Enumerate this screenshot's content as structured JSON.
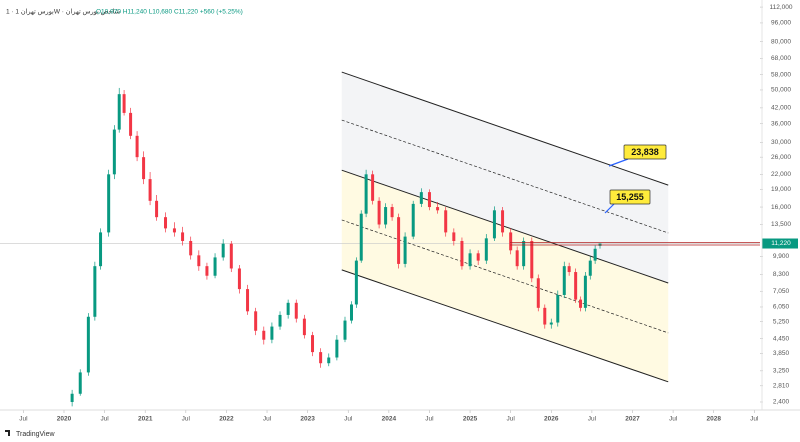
{
  "chart_data": {
    "type": "candlestick",
    "title": "بورس تهران 1 · 1W · شاخص بورس تهران",
    "legend_text": "O10,970 H11,240 L10,680 C11,220 +560 (+5.25%)",
    "logo": "TradingView",
    "log_scale": true,
    "up_color": "#089981",
    "down_color": "#f23645",
    "xlim": [
      2019.212,
      2028.57
    ],
    "ylim": [
      2220,
      120000
    ],
    "xticks": [
      {
        "value": 2019.5,
        "label": "Jul"
      },
      2020,
      {
        "value": 2020.5,
        "label": "Jul"
      },
      2021,
      {
        "value": 2021.5,
        "label": "Jul"
      },
      2022,
      {
        "value": 2022.5,
        "label": "Jul"
      },
      2023,
      {
        "value": 2023.5,
        "label": "Jul"
      },
      2024,
      {
        "value": 2024.5,
        "label": "Jul"
      },
      2025,
      {
        "value": 2025.5,
        "label": "Jul"
      },
      2026,
      {
        "value": 2026.5,
        "label": "Jul"
      },
      2027,
      {
        "value": 2027.5,
        "label": "Jul"
      },
      2028,
      {
        "value": 2028.5,
        "label": "Jul"
      }
    ],
    "yticks": [
      {
        "value": 112000,
        "label": "112,000"
      },
      {
        "value": 96000,
        "label": "96,000"
      },
      {
        "value": 80000,
        "label": "80,000"
      },
      {
        "value": 68000,
        "label": "68,000"
      },
      {
        "value": 58000,
        "label": "58,000"
      },
      {
        "value": 50000,
        "label": "50,000"
      },
      {
        "value": 42000,
        "label": "42,000"
      },
      {
        "value": 36000,
        "label": "36,000"
      },
      {
        "value": 30000,
        "label": "30,000"
      },
      {
        "value": 26000,
        "label": "26,000"
      },
      {
        "value": 22000,
        "label": "22,000"
      },
      {
        "value": 19000,
        "label": "19,000"
      },
      {
        "value": 16000,
        "label": "16,000"
      },
      {
        "value": 13500,
        "label": "13,500"
      },
      {
        "value": 9900,
        "label": "9,900"
      },
      {
        "value": 8300,
        "label": "8,300"
      },
      {
        "value": 7050,
        "label": "7,050"
      },
      {
        "value": 6050,
        "label": "6,050"
      },
      {
        "value": 5250,
        "label": "5,250"
      },
      {
        "value": 4450,
        "label": "4,450"
      },
      {
        "value": 3850,
        "label": "3,850"
      },
      {
        "value": 3250,
        "label": "3,250"
      },
      {
        "value": 2810,
        "label": "2,810"
      },
      {
        "value": 2400,
        "label": "2,400"
      }
    ],
    "x": [
      2020.1,
      2020.2,
      2020.3,
      2020.38,
      2020.45,
      2020.55,
      2020.62,
      2020.68,
      2020.74,
      2020.82,
      2020.9,
      2020.98,
      2021.06,
      2021.14,
      2021.25,
      2021.36,
      2021.46,
      2021.56,
      2021.66,
      2021.76,
      2021.86,
      2021.96,
      2022.06,
      2022.16,
      2022.26,
      2022.36,
      2022.46,
      2022.56,
      2022.66,
      2022.76,
      2022.86,
      2022.96,
      2023.06,
      2023.16,
      2023.26,
      2023.36,
      2023.46,
      2023.54,
      2023.6,
      2023.66,
      2023.72,
      2023.8,
      2023.88,
      2023.96,
      2024.04,
      2024.12,
      2024.2,
      2024.3,
      2024.4,
      2024.5,
      2024.6,
      2024.7,
      2024.8,
      2024.9,
      2025.0,
      2025.1,
      2025.2,
      2025.3,
      2025.4,
      2025.5,
      2025.58,
      2025.66,
      2025.76,
      2025.84,
      2025.92,
      2026.0,
      2026.08,
      2026.16,
      2026.22,
      2026.3,
      2026.36,
      2026.42,
      2026.48,
      2026.54,
      2026.6
    ],
    "open": [
      2400,
      2600,
      3200,
      5500,
      9000,
      12500,
      22000,
      34000,
      48000,
      40000,
      32000,
      26000,
      21000,
      17000,
      14500,
      13000,
      12500,
      11500,
      10000,
      9000,
      8200,
      9800,
      11200,
      8800,
      7200,
      5800,
      4800,
      4400,
      5000,
      5600,
      6300,
      5400,
      4600,
      3900,
      3500,
      3700,
      4400,
      5300,
      6200,
      9500,
      15000,
      22000,
      17000,
      13500,
      16000,
      14500,
      9200,
      12000,
      16500,
      18500,
      16000,
      15500,
      12500,
      11500,
      9000,
      10200,
      9500,
      11800,
      15500,
      12500,
      10500,
      9000,
      11500,
      8000,
      6000,
      5100,
      5200,
      6800,
      9000,
      8500,
      6500,
      6000,
      8200,
      9500,
      10970
    ],
    "high": [
      2700,
      3300,
      5700,
      9400,
      13000,
      23000,
      35500,
      51000,
      50000,
      42000,
      33500,
      27500,
      22500,
      18000,
      15200,
      13800,
      13200,
      12000,
      10500,
      9300,
      10200,
      11700,
      11500,
      9100,
      7500,
      6000,
      5000,
      5200,
      5800,
      6500,
      6500,
      5600,
      4750,
      4050,
      3850,
      4600,
      5500,
      6400,
      9800,
      15500,
      23000,
      22800,
      17600,
      16600,
      16500,
      15000,
      12500,
      17000,
      19200,
      19000,
      16800,
      16000,
      13000,
      11900,
      10600,
      10500,
      12300,
      16100,
      16000,
      13000,
      10900,
      11900,
      11900,
      8300,
      6200,
      5400,
      7100,
      9400,
      9300,
      8800,
      6700,
      8500,
      9900,
      11000,
      11240
    ],
    "low": [
      2300,
      2550,
      3100,
      5300,
      8700,
      12000,
      21000,
      33000,
      39000,
      31000,
      25000,
      20000,
      16300,
      14000,
      12500,
      12000,
      11000,
      9600,
      8600,
      7900,
      8000,
      9500,
      8500,
      6900,
      5600,
      4600,
      4200,
      4250,
      4850,
      5400,
      5200,
      4450,
      3750,
      3350,
      3400,
      3600,
      4300,
      5150,
      6000,
      9300,
      14500,
      16400,
      13000,
      13000,
      14000,
      8800,
      8900,
      11700,
      16000,
      15500,
      15000,
      12000,
      11000,
      8700,
      8700,
      9100,
      9200,
      11500,
      12000,
      10100,
      8700,
      8700,
      7700,
      5800,
      4900,
      4900,
      5000,
      6600,
      8200,
      6300,
      5800,
      5800,
      7900,
      9200,
      10680
    ],
    "close": [
      2600,
      3200,
      5500,
      9000,
      12500,
      22000,
      34000,
      48000,
      40000,
      32000,
      26000,
      21000,
      17000,
      14500,
      13000,
      12500,
      11500,
      10000,
      9000,
      8200,
      9800,
      11200,
      8800,
      7200,
      5800,
      4800,
      4400,
      5000,
      5600,
      6300,
      5400,
      4600,
      3900,
      3500,
      3700,
      4400,
      5300,
      6200,
      9500,
      15000,
      22000,
      17000,
      13500,
      16000,
      14500,
      9200,
      12000,
      16500,
      18500,
      16000,
      15500,
      12500,
      11500,
      9000,
      10200,
      9500,
      11800,
      15500,
      12500,
      10500,
      9000,
      11500,
      8000,
      6000,
      5100,
      5200,
      6800,
      9000,
      8500,
      6500,
      6000,
      8200,
      9500,
      10660,
      11220
    ],
    "price_line": {
      "value": 11220,
      "label": "11,220"
    },
    "channel_lines": [
      {
        "style": "solid",
        "points": [
          [
            2023.42,
            59500
          ],
          [
            2027.44,
            19800
          ]
        ]
      },
      {
        "style": "dashed",
        "points": [
          [
            2023.42,
            37300
          ],
          [
            2027.44,
            12430
          ]
        ]
      },
      {
        "style": "solid",
        "points": [
          [
            2023.42,
            22900
          ],
          [
            2027.44,
            7640
          ]
        ]
      },
      {
        "style": "dashed",
        "points": [
          [
            2023.42,
            14110
          ],
          [
            2027.44,
            4700
          ]
        ]
      },
      {
        "style": "solid",
        "points": [
          [
            2023.42,
            8680
          ],
          [
            2027.44,
            2920
          ]
        ]
      }
    ],
    "callouts": [
      {
        "value": 23838,
        "label": "23,838"
      },
      {
        "value": 15255,
        "label": "15,255"
      }
    ]
  }
}
